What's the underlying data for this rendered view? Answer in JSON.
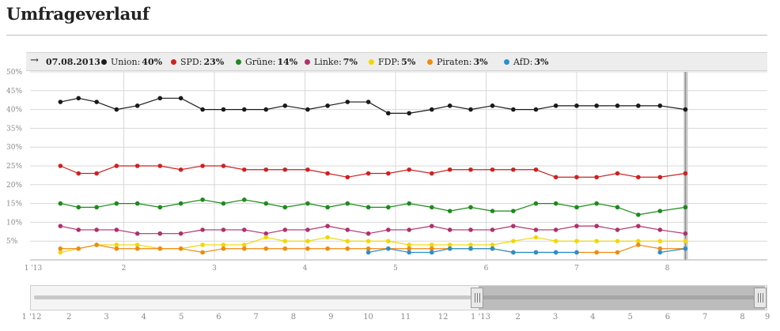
{
  "title": "Umfrageverlauf",
  "legend": {
    "arrow": "→",
    "date": "07.08.2013",
    "items": [
      {
        "name": "Union:",
        "value": "40%",
        "color": "#1a1a1a"
      },
      {
        "name": "SPD:",
        "value": "23%",
        "color": "#cc2222"
      },
      {
        "name": "Grüne:",
        "value": "14%",
        "color": "#1e8a1e"
      },
      {
        "name": "Linke:",
        "value": "7%",
        "color": "#b0306e"
      },
      {
        "name": "FDP:",
        "value": "5%",
        "color": "#f0d800"
      },
      {
        "name": "Piraten:",
        "value": "3%",
        "color": "#f08a10"
      },
      {
        "name": "AfD:",
        "value": "3%",
        "color": "#2a8fce"
      }
    ]
  },
  "chart_data": {
    "type": "line",
    "ylim": [
      0,
      50
    ],
    "yticks": [
      5,
      10,
      15,
      20,
      25,
      30,
      35,
      40,
      45,
      50
    ],
    "ytick_labels": [
      "5%",
      "10%",
      "15%",
      "20%",
      "25%",
      "30%",
      "35%",
      "40%",
      "45%",
      "50%"
    ],
    "x_range": [
      1,
      8.2
    ],
    "xticks": [
      {
        "v": 1,
        "label": "1 '13"
      },
      {
        "v": 2,
        "label": "2"
      },
      {
        "v": 3,
        "label": "3"
      },
      {
        "v": 4,
        "label": "4"
      },
      {
        "v": 5,
        "label": "5"
      },
      {
        "v": 6,
        "label": "6"
      },
      {
        "v": 7,
        "label": "7"
      },
      {
        "v": 8,
        "label": "8"
      }
    ],
    "grid": true,
    "current_marker_x": 8.2,
    "series": [
      {
        "name": "Union",
        "color": "#1a1a1a",
        "points": [
          [
            1.3,
            42
          ],
          [
            1.5,
            43
          ],
          [
            1.7,
            42
          ],
          [
            1.92,
            40
          ],
          [
            2.15,
            41
          ],
          [
            2.4,
            43
          ],
          [
            2.63,
            43
          ],
          [
            2.87,
            40
          ],
          [
            3.1,
            40
          ],
          [
            3.33,
            40
          ],
          [
            3.57,
            40
          ],
          [
            3.78,
            41
          ],
          [
            4.03,
            40
          ],
          [
            4.25,
            41
          ],
          [
            4.47,
            42
          ],
          [
            4.7,
            42
          ],
          [
            4.92,
            39
          ],
          [
            5.15,
            39
          ],
          [
            5.4,
            40
          ],
          [
            5.6,
            41
          ],
          [
            5.83,
            40
          ],
          [
            6.07,
            41
          ],
          [
            6.3,
            40
          ],
          [
            6.55,
            40
          ],
          [
            6.77,
            41
          ],
          [
            7.0,
            41
          ],
          [
            7.22,
            41
          ],
          [
            7.45,
            41
          ],
          [
            7.68,
            41
          ],
          [
            7.92,
            41
          ],
          [
            8.2,
            40
          ]
        ]
      },
      {
        "name": "SPD",
        "color": "#cc2222",
        "points": [
          [
            1.3,
            25
          ],
          [
            1.5,
            23
          ],
          [
            1.7,
            23
          ],
          [
            1.92,
            25
          ],
          [
            2.15,
            25
          ],
          [
            2.4,
            25
          ],
          [
            2.63,
            24
          ],
          [
            2.87,
            25
          ],
          [
            3.1,
            25
          ],
          [
            3.33,
            24
          ],
          [
            3.57,
            24
          ],
          [
            3.78,
            24
          ],
          [
            4.03,
            24
          ],
          [
            4.25,
            23
          ],
          [
            4.47,
            22
          ],
          [
            4.7,
            23
          ],
          [
            4.92,
            23
          ],
          [
            5.15,
            24
          ],
          [
            5.4,
            23
          ],
          [
            5.6,
            24
          ],
          [
            5.83,
            24
          ],
          [
            6.07,
            24
          ],
          [
            6.3,
            24
          ],
          [
            6.55,
            24
          ],
          [
            6.77,
            22
          ],
          [
            7.0,
            22
          ],
          [
            7.22,
            22
          ],
          [
            7.45,
            23
          ],
          [
            7.68,
            22
          ],
          [
            7.92,
            22
          ],
          [
            8.2,
            23
          ]
        ]
      },
      {
        "name": "Grüne",
        "color": "#1e8a1e",
        "points": [
          [
            1.3,
            15
          ],
          [
            1.5,
            14
          ],
          [
            1.7,
            14
          ],
          [
            1.92,
            15
          ],
          [
            2.15,
            15
          ],
          [
            2.4,
            14
          ],
          [
            2.63,
            15
          ],
          [
            2.87,
            16
          ],
          [
            3.1,
            15
          ],
          [
            3.33,
            16
          ],
          [
            3.57,
            15
          ],
          [
            3.78,
            14
          ],
          [
            4.03,
            15
          ],
          [
            4.25,
            14
          ],
          [
            4.47,
            15
          ],
          [
            4.7,
            14
          ],
          [
            4.92,
            14
          ],
          [
            5.15,
            15
          ],
          [
            5.4,
            14
          ],
          [
            5.6,
            13
          ],
          [
            5.83,
            14
          ],
          [
            6.07,
            13
          ],
          [
            6.3,
            13
          ],
          [
            6.55,
            15
          ],
          [
            6.77,
            15
          ],
          [
            7.0,
            14
          ],
          [
            7.22,
            15
          ],
          [
            7.45,
            14
          ],
          [
            7.68,
            12
          ],
          [
            7.92,
            13
          ],
          [
            8.2,
            14
          ]
        ]
      },
      {
        "name": "Linke",
        "color": "#b0306e",
        "points": [
          [
            1.3,
            9
          ],
          [
            1.5,
            8
          ],
          [
            1.7,
            8
          ],
          [
            1.92,
            8
          ],
          [
            2.15,
            7
          ],
          [
            2.4,
            7
          ],
          [
            2.63,
            7
          ],
          [
            2.87,
            8
          ],
          [
            3.1,
            8
          ],
          [
            3.33,
            8
          ],
          [
            3.57,
            7
          ],
          [
            3.78,
            8
          ],
          [
            4.03,
            8
          ],
          [
            4.25,
            9
          ],
          [
            4.47,
            8
          ],
          [
            4.7,
            7
          ],
          [
            4.92,
            8
          ],
          [
            5.15,
            8
          ],
          [
            5.4,
            9
          ],
          [
            5.6,
            8
          ],
          [
            5.83,
            8
          ],
          [
            6.07,
            8
          ],
          [
            6.3,
            9
          ],
          [
            6.55,
            8
          ],
          [
            6.77,
            8
          ],
          [
            7.0,
            9
          ],
          [
            7.22,
            9
          ],
          [
            7.45,
            8
          ],
          [
            7.68,
            9
          ],
          [
            7.92,
            8
          ],
          [
            8.2,
            7
          ]
        ]
      },
      {
        "name": "FDP",
        "color": "#f0d800",
        "points": [
          [
            1.3,
            2
          ],
          [
            1.5,
            3
          ],
          [
            1.7,
            4
          ],
          [
            1.92,
            4
          ],
          [
            2.15,
            4
          ],
          [
            2.4,
            3
          ],
          [
            2.63,
            3
          ],
          [
            2.87,
            4
          ],
          [
            3.1,
            4
          ],
          [
            3.33,
            4
          ],
          [
            3.57,
            6
          ],
          [
            3.78,
            5
          ],
          [
            4.03,
            5
          ],
          [
            4.25,
            6
          ],
          [
            4.47,
            5
          ],
          [
            4.7,
            5
          ],
          [
            4.92,
            5
          ],
          [
            5.15,
            4
          ],
          [
            5.4,
            4
          ],
          [
            5.6,
            4
          ],
          [
            5.83,
            4
          ],
          [
            6.07,
            4
          ],
          [
            6.3,
            5
          ],
          [
            6.55,
            6
          ],
          [
            6.77,
            5
          ],
          [
            7.0,
            5
          ],
          [
            7.22,
            5
          ],
          [
            7.45,
            5
          ],
          [
            7.68,
            5
          ],
          [
            7.92,
            5
          ],
          [
            8.2,
            5
          ]
        ]
      },
      {
        "name": "Piraten",
        "color": "#f08a10",
        "points": [
          [
            1.3,
            3
          ],
          [
            1.5,
            3
          ],
          [
            1.7,
            4
          ],
          [
            1.92,
            3
          ],
          [
            2.15,
            3
          ],
          [
            2.4,
            3
          ],
          [
            2.63,
            3
          ],
          [
            2.87,
            2
          ],
          [
            3.1,
            3
          ],
          [
            3.33,
            3
          ],
          [
            3.57,
            3
          ],
          [
            3.78,
            3
          ],
          [
            4.03,
            3
          ],
          [
            4.25,
            3
          ],
          [
            4.47,
            3
          ],
          [
            4.7,
            3
          ],
          [
            4.92,
            3
          ],
          [
            5.15,
            3
          ],
          [
            5.4,
            3
          ],
          [
            5.6,
            3
          ],
          [
            5.83,
            3
          ],
          [
            6.07,
            3
          ],
          [
            6.3,
            2
          ],
          [
            6.55,
            2
          ],
          [
            6.77,
            2
          ],
          [
            7.0,
            2
          ],
          [
            7.22,
            2
          ],
          [
            7.45,
            2
          ],
          [
            7.68,
            4
          ],
          [
            7.92,
            3
          ],
          [
            8.2,
            3
          ]
        ]
      },
      {
        "name": "AfD",
        "color": "#2a8fce",
        "points": [
          [
            4.7,
            2
          ],
          [
            4.92,
            3
          ],
          [
            5.15,
            2
          ],
          [
            5.4,
            2
          ],
          [
            5.6,
            3
          ],
          [
            5.83,
            3
          ],
          [
            6.07,
            3
          ],
          [
            6.3,
            2
          ],
          [
            6.55,
            2
          ],
          [
            6.77,
            2
          ],
          [
            7.0,
            2
          ],
          [
            7.92,
            2
          ],
          [
            8.2,
            3
          ]
        ]
      }
    ]
  },
  "navigator": {
    "ticks": [
      {
        "pos": 0.0,
        "label": "1 '12"
      },
      {
        "pos": 0.0508,
        "label": "2"
      },
      {
        "pos": 0.1017,
        "label": "3"
      },
      {
        "pos": 0.1525,
        "label": "4"
      },
      {
        "pos": 0.2034,
        "label": "5"
      },
      {
        "pos": 0.2542,
        "label": "6"
      },
      {
        "pos": 0.3051,
        "label": "7"
      },
      {
        "pos": 0.3559,
        "label": "8"
      },
      {
        "pos": 0.4068,
        "label": "9"
      },
      {
        "pos": 0.4576,
        "label": "10"
      },
      {
        "pos": 0.5085,
        "label": "11"
      },
      {
        "pos": 0.5593,
        "label": "12"
      },
      {
        "pos": 0.6102,
        "label": "1 '13"
      },
      {
        "pos": 0.661,
        "label": "2"
      },
      {
        "pos": 0.7119,
        "label": "3"
      },
      {
        "pos": 0.7627,
        "label": "4"
      },
      {
        "pos": 0.8136,
        "label": "5"
      },
      {
        "pos": 0.8644,
        "label": "6"
      },
      {
        "pos": 0.9153,
        "label": "7"
      },
      {
        "pos": 0.9661,
        "label": "8"
      },
      {
        "pos": 1.0,
        "label": "9"
      }
    ],
    "selection_range": [
      0.61,
      0.995
    ]
  }
}
